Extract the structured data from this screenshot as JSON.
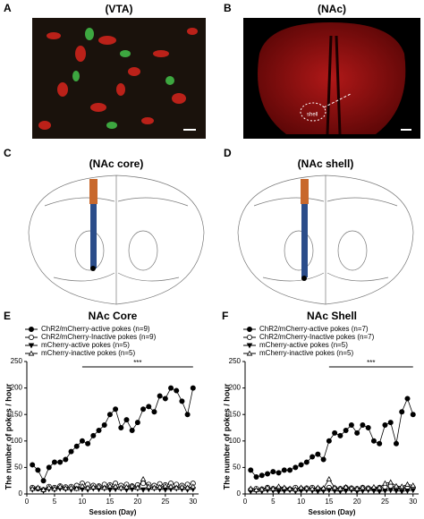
{
  "panels": [
    {
      "letter": "A",
      "title": "(VTA)"
    },
    {
      "letter": "B",
      "title": "(NAc)",
      "label": "shell"
    },
    {
      "letter": "C",
      "title": "(NAc core)"
    },
    {
      "letter": "D",
      "title": "(NAc shell)"
    }
  ],
  "chart_data": [
    {
      "type": "line",
      "letter": "E",
      "title": "NAc Core",
      "xlabel": "Session (Day)",
      "ylabel": "The number of pokes / hour",
      "x": [
        1,
        2,
        3,
        4,
        5,
        6,
        7,
        8,
        9,
        10,
        11,
        12,
        13,
        14,
        15,
        16,
        17,
        18,
        19,
        20,
        21,
        22,
        23,
        24,
        25,
        26,
        27,
        28,
        29,
        30
      ],
      "xlim": [
        0,
        31
      ],
      "xticks": [
        0,
        5,
        10,
        15,
        20,
        25,
        30
      ],
      "ylim": [
        0,
        250
      ],
      "yticks": [
        0,
        50,
        100,
        150,
        200,
        250
      ],
      "annotation": "***",
      "annotation_range": [
        10,
        30
      ],
      "series": [
        {
          "name": "ChR2/mCherry-active pokes (n=9)",
          "color": "#000",
          "marker": "circle",
          "filled": true,
          "values": [
            55,
            45,
            25,
            50,
            60,
            60,
            65,
            80,
            90,
            100,
            95,
            110,
            120,
            130,
            150,
            160,
            125,
            140,
            120,
            135,
            160,
            165,
            155,
            185,
            180,
            200,
            195,
            175,
            150,
            200
          ]
        },
        {
          "name": "ChR2/mCherry-Inactive pokes (n=9)",
          "color": "#000",
          "marker": "circle",
          "filled": false,
          "values": [
            12,
            10,
            8,
            14,
            12,
            15,
            13,
            14,
            16,
            20,
            18,
            16,
            15,
            18,
            17,
            20,
            16,
            18,
            15,
            17,
            20,
            18,
            16,
            19,
            17,
            20,
            18,
            16,
            18,
            20
          ]
        },
        {
          "name": "mCherry-active pokes (n=5)",
          "color": "#000",
          "marker": "triangle-down",
          "filled": true,
          "values": [
            8,
            10,
            6,
            9,
            8,
            10,
            9,
            8,
            10,
            9,
            8,
            10,
            9,
            10,
            8,
            9,
            10,
            8,
            9,
            10,
            8,
            9,
            10,
            9,
            8,
            9,
            10,
            9,
            8,
            9
          ]
        },
        {
          "name": "mCherry-inactive pokes (n=5)",
          "color": "#000",
          "marker": "triangle-up",
          "filled": false,
          "values": [
            10,
            12,
            8,
            12,
            10,
            14,
            11,
            12,
            10,
            15,
            12,
            13,
            14,
            12,
            15,
            14,
            12,
            13,
            15,
            12,
            28,
            14,
            12,
            13,
            15,
            14,
            12,
            13,
            12,
            14
          ]
        }
      ]
    },
    {
      "type": "line",
      "letter": "F",
      "title": "NAc Shell",
      "xlabel": "Session (Day)",
      "ylabel": "The number of pokes / hour",
      "x": [
        1,
        2,
        3,
        4,
        5,
        6,
        7,
        8,
        9,
        10,
        11,
        12,
        13,
        14,
        15,
        16,
        17,
        18,
        19,
        20,
        21,
        22,
        23,
        24,
        25,
        26,
        27,
        28,
        29,
        30
      ],
      "xlim": [
        0,
        31
      ],
      "xticks": [
        0,
        5,
        10,
        15,
        20,
        25,
        30
      ],
      "ylim": [
        0,
        250
      ],
      "yticks": [
        0,
        50,
        100,
        150,
        200,
        250
      ],
      "annotation": "***",
      "annotation_range": [
        15,
        30
      ],
      "series": [
        {
          "name": "ChR2/mCherry-active pokes (n=7)",
          "color": "#000",
          "marker": "circle",
          "filled": true,
          "values": [
            45,
            32,
            35,
            38,
            42,
            40,
            45,
            45,
            50,
            55,
            60,
            70,
            75,
            65,
            100,
            115,
            110,
            120,
            130,
            115,
            130,
            125,
            100,
            95,
            130,
            135,
            95,
            155,
            180,
            150
          ]
        },
        {
          "name": "ChR2/mCherry-Inactive pokes (n=7)",
          "color": "#000",
          "marker": "circle",
          "filled": false,
          "values": [
            8,
            10,
            9,
            12,
            10,
            11,
            10,
            9,
            12,
            10,
            11,
            12,
            10,
            9,
            12,
            11,
            10,
            12,
            11,
            10,
            12,
            11,
            10,
            12,
            13,
            15,
            12,
            11,
            13,
            12
          ]
        },
        {
          "name": "mCherry-active pokes (n=5)",
          "color": "#000",
          "marker": "triangle-down",
          "filled": true,
          "values": [
            5,
            6,
            5,
            7,
            6,
            5,
            6,
            7,
            5,
            6,
            7,
            6,
            5,
            6,
            7,
            6,
            5,
            6,
            7,
            5,
            6,
            7,
            6,
            5,
            6,
            7,
            6,
            5,
            6,
            7
          ]
        },
        {
          "name": "mCherry-inactive pokes (n=5)",
          "color": "#000",
          "marker": "triangle-up",
          "filled": false,
          "values": [
            10,
            8,
            9,
            12,
            10,
            14,
            12,
            10,
            9,
            12,
            11,
            10,
            12,
            11,
            28,
            12,
            10,
            13,
            11,
            10,
            12,
            11,
            13,
            12,
            20,
            22,
            15,
            14,
            18,
            16
          ]
        }
      ]
    }
  ]
}
